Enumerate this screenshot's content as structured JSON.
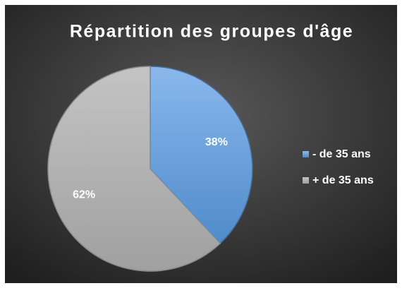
{
  "chart_data": {
    "type": "pie",
    "title": "Répartition des groupes d'âge",
    "categories": [
      "- de 35 ans",
      "+ de 35 ans"
    ],
    "values": [
      38,
      62
    ],
    "value_labels": [
      "38%",
      "62%"
    ],
    "colors": [
      "#6fa8e6",
      "#b5b5b5"
    ],
    "legend": "right"
  }
}
